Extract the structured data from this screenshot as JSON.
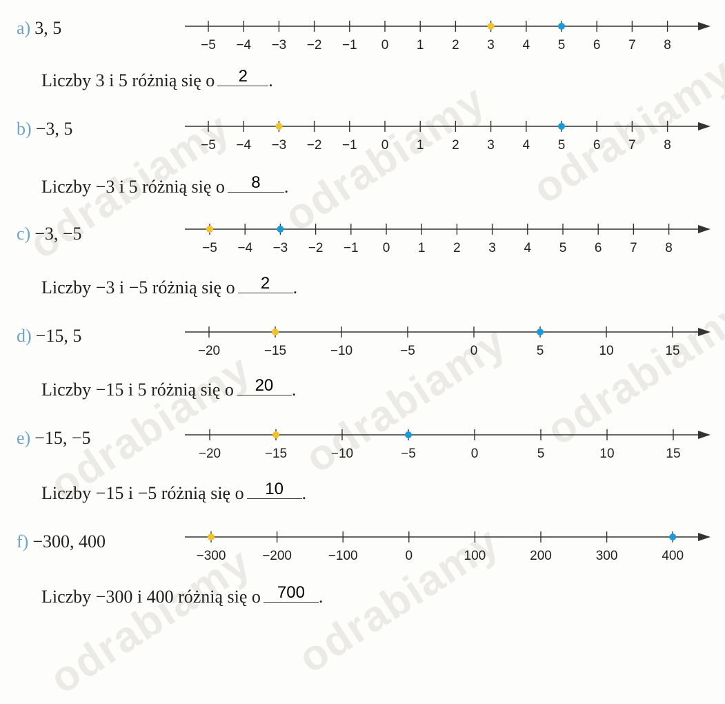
{
  "watermark": "odrabiamy",
  "colors": {
    "point_a": "#f2c12e",
    "point_b": "#1a9bd7",
    "axis": "#333333",
    "letter": "#6fa2c8"
  },
  "tasks": [
    {
      "letter": "a)",
      "numbers": "3, 5",
      "sentence_before": "Liczby 3 i 5 różnią się o",
      "answer": "2",
      "ticks": [
        "−5",
        "−4",
        "−3",
        "−2",
        "−1",
        "0",
        "1",
        "2",
        "3",
        "4",
        "5",
        "6",
        "7",
        "8"
      ],
      "tick_values": [
        -5,
        -4,
        -3,
        -2,
        -1,
        0,
        1,
        2,
        3,
        4,
        5,
        6,
        7,
        8
      ],
      "points": [
        3,
        5
      ]
    },
    {
      "letter": "b)",
      "numbers": "−3, 5",
      "sentence_before": "Liczby −3 i 5 różnią się o",
      "answer": "8",
      "ticks": [
        "−5",
        "−4",
        "−3",
        "−2",
        "−1",
        "0",
        "1",
        "2",
        "3",
        "4",
        "5",
        "6",
        "7",
        "8"
      ],
      "tick_values": [
        -5,
        -4,
        -3,
        -2,
        -1,
        0,
        1,
        2,
        3,
        4,
        5,
        6,
        7,
        8
      ],
      "points": [
        -3,
        5
      ]
    },
    {
      "letter": "c)",
      "numbers": "−3, −5",
      "sentence_before": "Liczby −3 i −5 różnią się o",
      "answer": "2",
      "ticks": [
        "−5",
        "−4",
        "−3",
        "−2",
        "−1",
        "0",
        "1",
        "2",
        "3",
        "4",
        "5",
        "6",
        "7",
        "8"
      ],
      "tick_values": [
        -5,
        -4,
        -3,
        -2,
        -1,
        0,
        1,
        2,
        3,
        4,
        5,
        6,
        7,
        8
      ],
      "points": [
        -5,
        -3
      ]
    },
    {
      "letter": "d)",
      "numbers": "−15, 5",
      "sentence_before": "Liczby −15  i 5 różnią się o",
      "answer": "20",
      "ticks": [
        "−20",
        "−15",
        "−10",
        "−5",
        "0",
        "5",
        "10",
        "15"
      ],
      "tick_values": [
        -20,
        -15,
        -10,
        -5,
        0,
        5,
        10,
        15
      ],
      "points": [
        -15,
        5
      ]
    },
    {
      "letter": "e)",
      "numbers": "−15, −5",
      "sentence_before": "Liczby −15  i −5 różnią się o",
      "answer": "10",
      "ticks": [
        "−20",
        "−15",
        "−10",
        "−5",
        "0",
        "5",
        "10",
        "15"
      ],
      "tick_values": [
        -20,
        -15,
        -10,
        -5,
        0,
        5,
        10,
        15
      ],
      "points": [
        -15,
        -5
      ]
    },
    {
      "letter": "f)",
      "numbers": "−300, 400",
      "sentence_before": "Liczby −300 i 400 różnią się o",
      "answer": "700",
      "ticks": [
        "−300",
        "−200",
        "−100",
        "0",
        "100",
        "200",
        "300",
        "400"
      ],
      "tick_values": [
        -300,
        -200,
        -100,
        0,
        100,
        200,
        300,
        400
      ],
      "points": [
        -300,
        400
      ]
    }
  ]
}
